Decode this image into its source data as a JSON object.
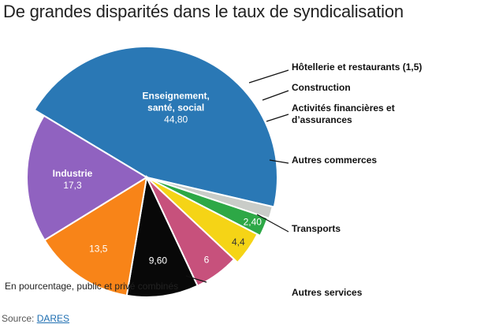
{
  "chart_data": {
    "type": "pie",
    "title": "De grandes disparités dans le taux de syndicalisation",
    "subtitle": "En pourcentage, public et privé combinés",
    "slices": [
      {
        "name": "Enseignement, santé, social",
        "value": 44.8,
        "label": "44,80",
        "color": "#2a78b5"
      },
      {
        "name": "Hôtellerie et restaurants (1,5)",
        "value": 1.5,
        "label": "",
        "color": "#c9ccc8"
      },
      {
        "name": "Construction",
        "value": 2.4,
        "label": "2,40",
        "color": "#2da846"
      },
      {
        "name": "Activités financières et d'assurances",
        "value": 4.4,
        "label": "4,4",
        "color": "#f5d416"
      },
      {
        "name": "Autres commerces",
        "value": 6,
        "label": "6",
        "color": "#c7517c"
      },
      {
        "name": "Transports",
        "value": 9.6,
        "label": "9,60",
        "color": "#080808"
      },
      {
        "name": "Autres services",
        "value": 13.5,
        "label": "13,5",
        "color": "#f88418"
      },
      {
        "name": "Industrie",
        "value": 17.3,
        "label": "17,3",
        "color": "#9062c0"
      }
    ]
  },
  "footer": {
    "source_prefix": "Source: ",
    "source_link": "DARES"
  }
}
